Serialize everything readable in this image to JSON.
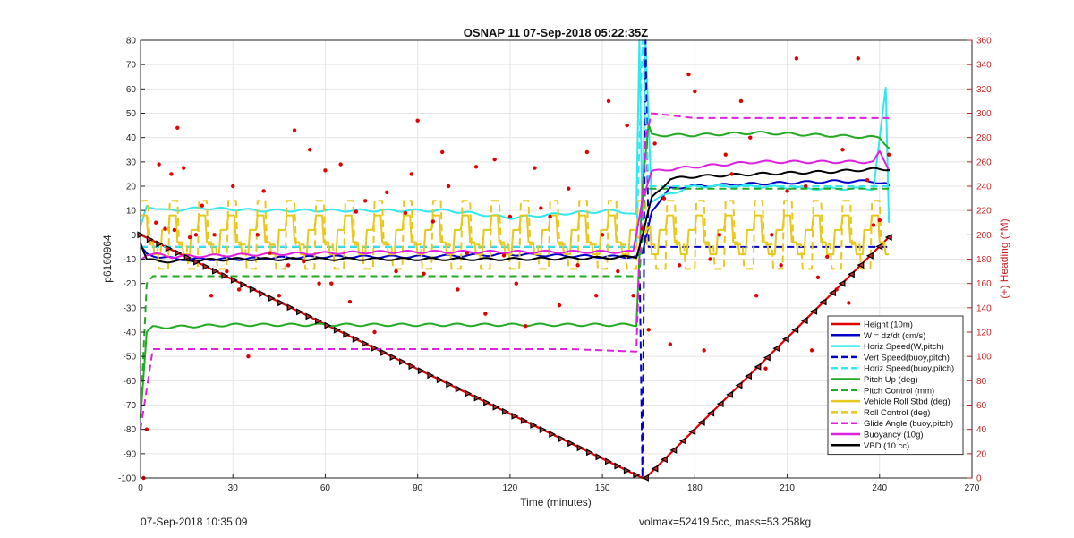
{
  "chart_data": {
    "type": "line",
    "title": "OSNAP 11 07-Sep-2018 05:22:35Z",
    "xlabel": "Time (minutes)",
    "ylabel": "p6160964",
    "y2label": "(+) Heading (°M)",
    "xlim": [
      0,
      270
    ],
    "ylim": [
      -100,
      80
    ],
    "y2lim": [
      0,
      360
    ],
    "xticks": [
      0,
      30,
      60,
      90,
      120,
      150,
      180,
      210,
      240,
      270
    ],
    "yticks": [
      -100,
      -90,
      -80,
      -70,
      -60,
      -50,
      -40,
      -30,
      -20,
      -10,
      0,
      10,
      20,
      30,
      40,
      50,
      60,
      70,
      80
    ],
    "y2ticks": [
      0,
      20,
      40,
      60,
      80,
      100,
      120,
      140,
      160,
      180,
      200,
      220,
      240,
      260,
      280,
      300,
      320,
      340,
      360
    ],
    "grid": true,
    "legend_position": "bottom-right",
    "colors": {
      "red": "#e00000",
      "blue": "#0000c8",
      "cyan": "#30e8f0",
      "green": "#22aa22",
      "yellow": "#e8c81a",
      "magenta": "#e020e0",
      "black": "#000000",
      "axis_right": "#cc2222"
    },
    "series": [
      {
        "name": "Height (10m)",
        "color": "red",
        "style": "solid",
        "x": [
          0,
          163,
          164,
          243
        ],
        "y": [
          0,
          -100,
          -100,
          -1
        ]
      },
      {
        "name": "W = dz/dt (cm/s)",
        "color": "blue",
        "style": "solid",
        "x": [
          0,
          2,
          6,
          12,
          30,
          60,
          90,
          120,
          150,
          161,
          163,
          166,
          172,
          178,
          200,
          225,
          238,
          242,
          243
        ],
        "y": [
          -5,
          -8,
          -9,
          -10,
          -10,
          -9,
          -9,
          -8,
          -9,
          -9,
          -8,
          10,
          19,
          20,
          21,
          22,
          22,
          21,
          20
        ]
      },
      {
        "name": "Horiz Speed(W,pitch)",
        "color": "cyan",
        "style": "solid",
        "x": [
          0,
          2,
          8,
          20,
          40,
          60,
          80,
          100,
          120,
          140,
          155,
          161,
          162,
          163,
          164,
          166,
          172,
          180,
          200,
          220,
          238,
          242,
          243
        ],
        "y": [
          3,
          12,
          10,
          11,
          10,
          10,
          10,
          10,
          7,
          9,
          10,
          8,
          80,
          6,
          80,
          14,
          17,
          20,
          20,
          19,
          19,
          60,
          5
        ]
      },
      {
        "name": "Vert Speed(buoy,pitch)",
        "color": "blue",
        "style": "dash",
        "x": [
          0,
          162,
          163,
          164,
          165,
          243
        ],
        "y": [
          -5,
          -5,
          -100,
          80,
          -5,
          -5
        ]
      },
      {
        "name": "Horiz Speed(buoy,pitch)",
        "color": "cyan",
        "style": "dash",
        "x": [
          0,
          161,
          163,
          165,
          243
        ],
        "y": [
          -5,
          -5,
          80,
          20,
          20
        ]
      },
      {
        "name": "Pitch Up (deg)",
        "color": "green",
        "style": "solid",
        "x": [
          0,
          2,
          4,
          8,
          30,
          60,
          90,
          120,
          150,
          161,
          163,
          165,
          166,
          170,
          180,
          200,
          220,
          240,
          243
        ],
        "y": [
          -75,
          -40,
          -38,
          -38,
          -37,
          -37,
          -37,
          -37,
          -37,
          -37,
          20,
          45,
          41,
          41,
          41,
          42,
          41,
          40,
          36
        ]
      },
      {
        "name": "Pitch Control (mm)",
        "color": "green",
        "style": "dash",
        "x": [
          0,
          2,
          4,
          160,
          162,
          164,
          166,
          243
        ],
        "y": [
          -75,
          -20,
          -17,
          -17,
          -17,
          19,
          19,
          19
        ]
      },
      {
        "name": "Vehicle Roll Stbd (deg)",
        "color": "yellow",
        "style": "solid",
        "x": [
          0,
          160,
          163,
          166,
          243
        ],
        "y": [
          8,
          -5,
          -2,
          4,
          2
        ]
      },
      {
        "name": "Roll Control (deg)",
        "color": "yellow",
        "style": "dash",
        "x": [
          0,
          243
        ],
        "y": [
          0,
          0
        ]
      },
      {
        "name": "Glide Angle (buoy,pitch)",
        "color": "magenta",
        "style": "dash",
        "x": [
          0,
          4,
          20,
          60,
          100,
          140,
          161,
          162,
          164,
          166,
          180,
          210,
          240,
          243
        ],
        "y": [
          -80,
          -47,
          -47,
          -47,
          -47,
          -47,
          -48,
          -10,
          40,
          50,
          48,
          48,
          48,
          48
        ]
      },
      {
        "name": "Buoyancy (10g)",
        "color": "magenta",
        "style": "solid",
        "x": [
          0,
          2,
          5,
          10,
          40,
          80,
          120,
          160,
          163,
          166,
          172,
          180,
          200,
          225,
          238,
          240,
          243
        ],
        "y": [
          -10,
          -8,
          -8,
          -9,
          -8,
          -7,
          -7,
          -7,
          15,
          26,
          27,
          28,
          30,
          30,
          30,
          34,
          27
        ]
      },
      {
        "name": "VBD (10 cc)",
        "color": "black",
        "style": "solid",
        "x": [
          0,
          2,
          6,
          30,
          60,
          90,
          120,
          150,
          161,
          163,
          166,
          172,
          180,
          200,
          225,
          238,
          243
        ],
        "y": [
          -3,
          -10,
          -11,
          -10,
          -10,
          -10,
          -10,
          -9.5,
          -9,
          0,
          15,
          23,
          24,
          25,
          26,
          27,
          27
        ]
      }
    ],
    "heading_points": {
      "axis": "right",
      "x": [
        1,
        2,
        5,
        6,
        8,
        10,
        11,
        12,
        14,
        16,
        18,
        20,
        23,
        24,
        28,
        30,
        32,
        35,
        38,
        40,
        42,
        45,
        48,
        50,
        53,
        55,
        58,
        60,
        62,
        65,
        68,
        70,
        73,
        76,
        80,
        83,
        86,
        88,
        90,
        92,
        95,
        98,
        100,
        103,
        106,
        109,
        112,
        115,
        118,
        120,
        122,
        125,
        128,
        130,
        133,
        136,
        139,
        142,
        145,
        148,
        150,
        152,
        155,
        158,
        160,
        163,
        165,
        167,
        170,
        172,
        175,
        178,
        180,
        183,
        185,
        188,
        190,
        192,
        195,
        198,
        200,
        203,
        205,
        208,
        210,
        213,
        216,
        218,
        220,
        223,
        226,
        228,
        230,
        233,
        236,
        238,
        240,
        243
      ],
      "y": [
        0,
        40,
        210,
        258,
        205,
        250,
        204,
        288,
        255,
        198,
        200,
        224,
        150,
        200,
        170,
        240,
        155,
        100,
        200,
        236,
        185,
        150,
        175,
        286,
        178,
        270,
        160,
        253,
        160,
        258,
        145,
        219,
        228,
        120,
        235,
        170,
        218,
        250,
        294,
        168,
        211,
        268,
        240,
        155,
        185,
        256,
        135,
        262,
        183,
        215,
        160,
        125,
        255,
        222,
        215,
        142,
        238,
        175,
        268,
        150,
        200,
        310,
        170,
        290,
        150,
        205,
        122,
        275,
        230,
        110,
        175,
        332,
        318,
        105,
        180,
        200,
        266,
        250,
        310,
        280,
        150,
        90,
        200,
        175,
        236,
        345,
        240,
        105,
        165,
        182,
        155,
        270,
        144,
        345,
        245,
        208,
        212,
        266
      ]
    },
    "triangle_markers": {
      "series": "Height (10m)",
      "count": 80
    }
  },
  "footer": {
    "timestamp": "07-Sep-2018 10:35:09",
    "stats": "volmax=52419.5cc, mass=53.258kg"
  }
}
